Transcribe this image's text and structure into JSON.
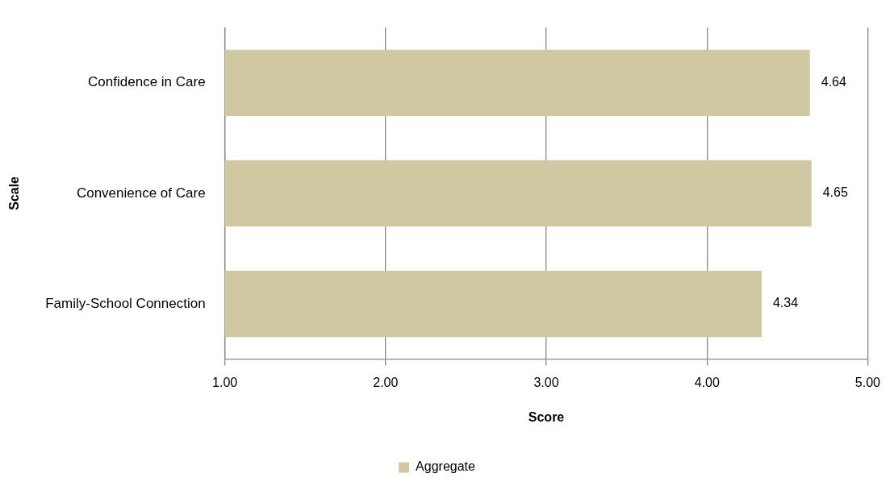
{
  "chart_data": {
    "type": "bar",
    "orientation": "horizontal",
    "categories": [
      "Confidence in Care",
      "Convenience of Care",
      "Family-School Connection"
    ],
    "series": [
      {
        "name": "Aggregate",
        "color": "#d0c7a3",
        "values": [
          4.64,
          4.65,
          4.34
        ]
      }
    ],
    "xlabel": "Score",
    "ylabel": "Scale",
    "xlim": [
      1,
      5
    ],
    "xticks": [
      {
        "value": 1,
        "label": "1.00"
      },
      {
        "value": 2,
        "label": "2.00"
      },
      {
        "value": 3,
        "label": "3.00"
      },
      {
        "value": 4,
        "label": "4.00"
      },
      {
        "value": 5,
        "label": "5.00"
      }
    ],
    "grid": "x",
    "legend": "bottom",
    "data_labels": true
  }
}
